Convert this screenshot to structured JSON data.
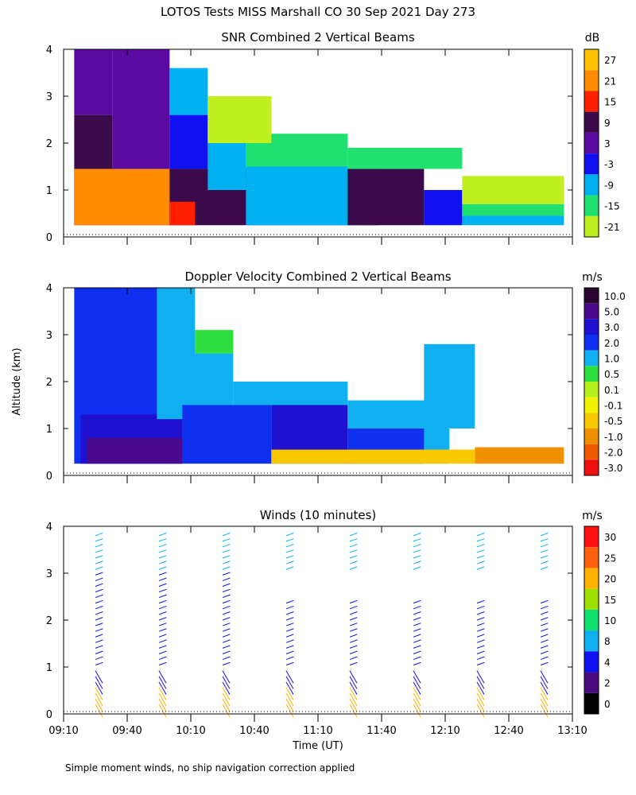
{
  "figure": {
    "title": "LOTOS Tests MISS Marshall CO  30 Sep 2021 Day 273",
    "ylabel": "Altitude (km)",
    "xlabel": "Time (UT)",
    "footnote": "Simple moment winds, no ship navigation correction applied",
    "x_ticks": [
      "09:10",
      "09:40",
      "10:10",
      "10:40",
      "11:10",
      "11:40",
      "12:10",
      "12:40",
      "13:10"
    ],
    "y_ticks": [
      "0",
      "1",
      "2",
      "3",
      "4"
    ]
  },
  "chart_data": [
    {
      "type": "heatmap",
      "title": "SNR Combined 2 Vertical Beams",
      "unit": "dB",
      "x_range": [
        "09:10",
        "13:10"
      ],
      "ylim": [
        0,
        4
      ],
      "legend": {
        "labels": [
          "27",
          "21",
          "15",
          "9",
          "3",
          "-3",
          "-9",
          "-15",
          "-21"
        ],
        "colors": [
          "#ffc000",
          "#ff8c00",
          "#ff2000",
          "#3a0a4a",
          "#5a0aa0",
          "#1010f0",
          "#00b0f0",
          "#20e070",
          "#c0f020"
        ]
      },
      "regions": [
        {
          "t": [
            9.25,
            11.65
          ],
          "z": [
            0.25,
            1.45
          ],
          "value": 9
        },
        {
          "t": [
            9.25,
            10.0
          ],
          "z": [
            0.25,
            1.45
          ],
          "value": 21
        },
        {
          "t": [
            10.0,
            10.2
          ],
          "z": [
            0.25,
            0.75
          ],
          "value": 15
        },
        {
          "t": [
            9.25,
            9.55
          ],
          "z": [
            1.45,
            2.6
          ],
          "value": 9
        },
        {
          "t": [
            9.55,
            10.0
          ],
          "z": [
            1.45,
            4.0
          ],
          "value": 3
        },
        {
          "t": [
            9.25,
            9.55
          ],
          "z": [
            2.6,
            4.0
          ],
          "value": 3
        },
        {
          "t": [
            10.0,
            10.3
          ],
          "z": [
            1.45,
            2.6
          ],
          "value": -3
        },
        {
          "t": [
            10.3,
            10.6
          ],
          "z": [
            1.0,
            2.0
          ],
          "value": -9
        },
        {
          "t": [
            10.0,
            10.3
          ],
          "z": [
            2.6,
            3.6
          ],
          "value": -9
        },
        {
          "t": [
            10.6,
            11.4
          ],
          "z": [
            0.25,
            1.5
          ],
          "value": -9
        },
        {
          "t": [
            11.4,
            12.0
          ],
          "z": [
            0.25,
            1.45
          ],
          "value": 9
        },
        {
          "t": [
            12.0,
            12.3
          ],
          "z": [
            0.25,
            1.0
          ],
          "value": -3
        },
        {
          "t": [
            12.3,
            13.1
          ],
          "z": [
            0.25,
            0.45
          ],
          "value": -9
        },
        {
          "t": [
            12.3,
            13.1
          ],
          "z": [
            0.45,
            0.7
          ],
          "value": -15
        },
        {
          "t": [
            10.6,
            11.4
          ],
          "z": [
            1.5,
            2.2
          ],
          "value": -15
        },
        {
          "t": [
            10.3,
            10.8
          ],
          "z": [
            2.0,
            3.0
          ],
          "value": -21
        },
        {
          "t": [
            11.4,
            12.3
          ],
          "z": [
            1.45,
            1.9
          ],
          "value": -15
        },
        {
          "t": [
            12.3,
            13.1
          ],
          "z": [
            0.7,
            1.3
          ],
          "value": -21
        }
      ]
    },
    {
      "type": "heatmap",
      "title": "Doppler Velocity Combined 2 Vertical Beams",
      "unit": "m/s",
      "x_range": [
        "09:10",
        "13:10"
      ],
      "ylim": [
        0,
        4
      ],
      "legend": {
        "labels": [
          "10.0",
          "5.0",
          "3.0",
          "2.0",
          "1.0",
          "0.5",
          "0.1",
          "-0.1",
          "-0.5",
          "-1.0",
          "-2.0",
          "-3.0"
        ],
        "colors": [
          "#2a0530",
          "#4a0a90",
          "#2010d0",
          "#1030f0",
          "#10b0f0",
          "#30e040",
          "#b8f020",
          "#f0f000",
          "#f8c800",
          "#f09000",
          "#f05a00",
          "#f01010"
        ]
      },
      "regions": [
        {
          "t": [
            9.25,
            10.1
          ],
          "z": [
            0.25,
            4.0
          ],
          "value": 2.0
        },
        {
          "t": [
            9.3,
            10.1
          ],
          "z": [
            0.25,
            1.3
          ],
          "value": 3.0
        },
        {
          "t": [
            9.35,
            10.1
          ],
          "z": [
            0.25,
            0.8
          ],
          "value": 5.0
        },
        {
          "t": [
            9.9,
            10.2
          ],
          "z": [
            1.2,
            4.0
          ],
          "value": 1.0
        },
        {
          "t": [
            10.1,
            10.8
          ],
          "z": [
            0.25,
            1.5
          ],
          "value": 2.0
        },
        {
          "t": [
            10.1,
            10.5
          ],
          "z": [
            1.5,
            2.6
          ],
          "value": 1.0
        },
        {
          "t": [
            10.2,
            10.5
          ],
          "z": [
            2.6,
            3.1
          ],
          "value": 0.5
        },
        {
          "t": [
            10.5,
            11.4
          ],
          "z": [
            1.5,
            2.0
          ],
          "value": 1.0
        },
        {
          "t": [
            10.8,
            11.4
          ],
          "z": [
            0.25,
            1.5
          ],
          "value": 3.0
        },
        {
          "t": [
            11.4,
            12.2
          ],
          "z": [
            0.25,
            1.6
          ],
          "value": 1.0
        },
        {
          "t": [
            11.4,
            12.0
          ],
          "z": [
            0.25,
            1.0
          ],
          "value": 2.0
        },
        {
          "t": [
            12.0,
            12.4
          ],
          "z": [
            1.0,
            2.8
          ],
          "value": 1.0
        },
        {
          "t": [
            12.4,
            13.1
          ],
          "z": [
            0.25,
            0.6
          ],
          "value": -1.0
        },
        {
          "t": [
            10.8,
            12.4
          ],
          "z": [
            0.25,
            0.55
          ],
          "value": -0.5
        }
      ]
    },
    {
      "type": "scatter",
      "title": "Winds (10 minutes)",
      "unit": "m/s",
      "x_range": [
        "09:10",
        "13:10"
      ],
      "ylim": [
        0,
        4
      ],
      "legend": {
        "labels": [
          "30",
          "25",
          "20",
          "15",
          "10",
          "8",
          "4",
          "2",
          "0"
        ],
        "colors": [
          "#ff1010",
          "#ff6010",
          "#ffb000",
          "#a0e000",
          "#10e070",
          "#10b0f0",
          "#1010f0",
          "#4a0a80",
          "#000000"
        ]
      },
      "profiles": [
        "09:25",
        "09:55",
        "10:25",
        "10:55",
        "11:25",
        "11:55",
        "12:25",
        "12:55"
      ]
    }
  ]
}
